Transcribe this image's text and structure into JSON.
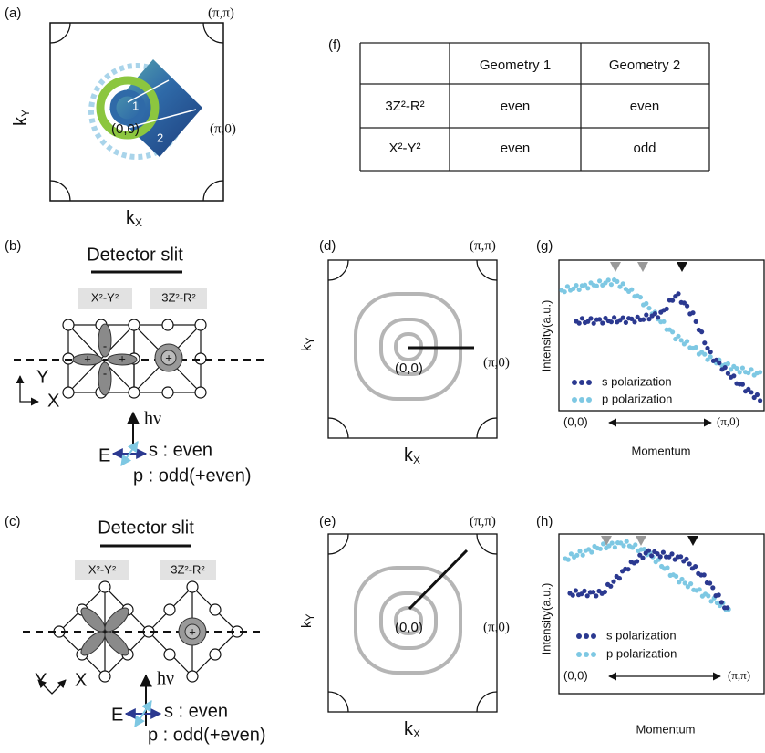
{
  "panel_a": {
    "label": "(a)",
    "pi_pi": "(π,π)",
    "pi_0": "(π,0)",
    "origin": "(0,0)",
    "cut1": "1",
    "cut2": "2",
    "x_axis": {
      "base": "k",
      "sub": "X"
    },
    "y_axis": {
      "base": "k",
      "sub": "Y"
    }
  },
  "panel_f": {
    "label": "(f)",
    "table": {
      "header": [
        "Geometry 1",
        "Geometry 2"
      ],
      "rows": [
        [
          "3Z²-R²",
          "even",
          "even"
        ],
        [
          "X²-Y²",
          "even",
          "odd"
        ]
      ]
    }
  },
  "panel_b": {
    "label": "(b)",
    "slit": "Detector slit",
    "orbital1": "X²-Y²",
    "orbital2": "3Z²-R²",
    "plus": "+",
    "minus": "-",
    "axis_y": "Y",
    "axis_x": "X",
    "photon": "hν",
    "field": "E",
    "s_pol": "s : even",
    "p_pol": "p : odd(+even)"
  },
  "panel_c": {
    "label": "(c)",
    "slit": "Detector slit",
    "orbital1": "X²-Y²",
    "orbital2": "3Z²-R²",
    "plus": "+",
    "axis_y": "Y",
    "axis_x": "X",
    "photon": "hν",
    "field": "E",
    "s_pol": "s : even",
    "p_pol": "p : odd(+even)"
  },
  "panel_d": {
    "label": "(d)",
    "pi_pi": "(π,π)",
    "pi_0": "(π,0)",
    "origin": "(0,0)",
    "x_axis": {
      "base": "k",
      "sub": "X"
    },
    "y_axis": {
      "base": "k",
      "sub": "Y"
    }
  },
  "panel_e": {
    "label": "(e)",
    "pi_pi": "(π,π)",
    "pi_0": "(π,0)",
    "origin": "(0,0)",
    "x_axis": {
      "base": "k",
      "sub": "X"
    },
    "y_axis": {
      "base": "k",
      "sub": "Y"
    }
  },
  "panel_g": {
    "label": "(g)",
    "y_label": "Intensity(a.u.)",
    "legend": [
      "s polarization",
      "p polarization"
    ],
    "start": "(0,0)",
    "end": "(π,0)",
    "x_label": "Momentum"
  },
  "panel_h": {
    "label": "(h)",
    "y_label": "Intensity(a.u.)",
    "legend": [
      "s polarization",
      "p polarization"
    ],
    "start": "(0,0)",
    "end": "(π,π)",
    "x_label": "Momentum"
  }
}
